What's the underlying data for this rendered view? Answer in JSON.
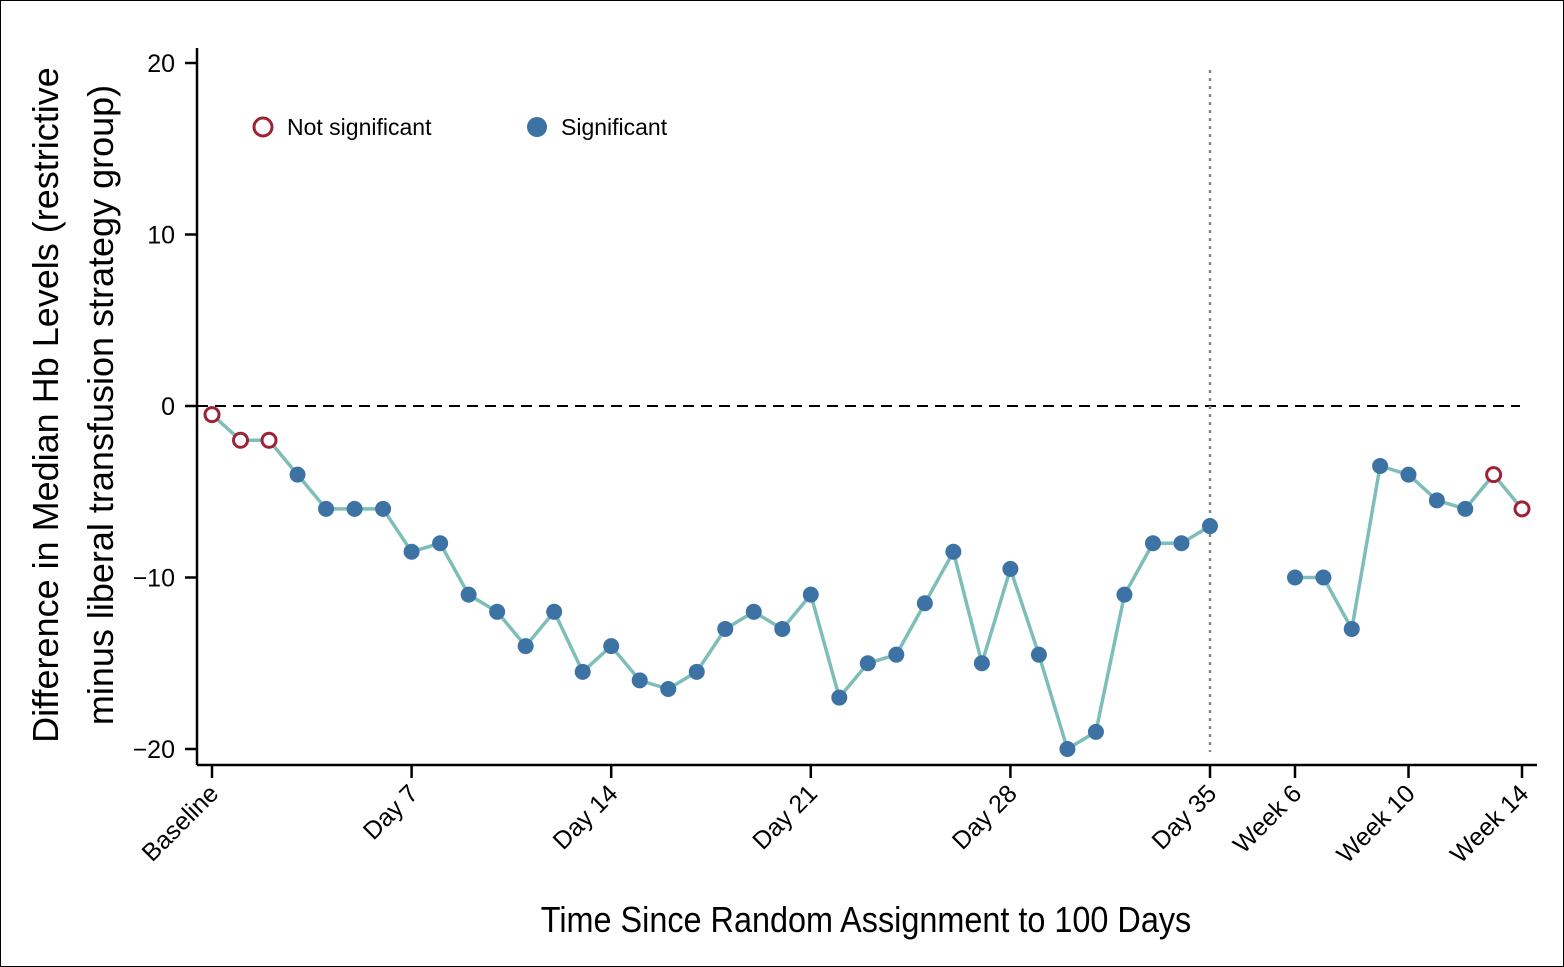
{
  "chart_data": {
    "type": "line",
    "xlabel": "Time Since Random Assignment to 100 Days",
    "ylabel_line1": "Difference in Median Hb Levels (restrictive",
    "ylabel_line2": "minus liberal transfusion strategy group)",
    "ylim": [
      -21,
      21
    ],
    "yticks": [
      20,
      10,
      0,
      -10,
      -20
    ],
    "x_ticks": [
      {
        "x": 0,
        "label": "Baseline"
      },
      {
        "x": 7,
        "label": "Day 7"
      },
      {
        "x": 14,
        "label": "Day 14"
      },
      {
        "x": 21,
        "label": "Day 21"
      },
      {
        "x": 28,
        "label": "Day 28"
      },
      {
        "x": 35,
        "label": "Day 35"
      },
      {
        "x": 38,
        "label": "Week 6"
      },
      {
        "x": 42,
        "label": "Week 10"
      },
      {
        "x": 46,
        "label": "Week 14"
      }
    ],
    "reference_line_y": 0,
    "divider_x": 35,
    "legend": {
      "not_significant": "Not significant",
      "significant": "Significant",
      "placement": "top-left"
    },
    "colors": {
      "line": "#7dbfb8",
      "significant": "#3d72a5",
      "not_significant": "#9b2335"
    },
    "segments": [
      [
        {
          "x": 0,
          "y": -0.5,
          "sig": false
        },
        {
          "x": 1,
          "y": -2,
          "sig": false
        },
        {
          "x": 2,
          "y": -2,
          "sig": false
        },
        {
          "x": 3,
          "y": -4,
          "sig": true
        },
        {
          "x": 4,
          "y": -6,
          "sig": true
        },
        {
          "x": 5,
          "y": -6,
          "sig": true
        },
        {
          "x": 6,
          "y": -6,
          "sig": true
        },
        {
          "x": 7,
          "y": -8.5,
          "sig": true
        },
        {
          "x": 8,
          "y": -8,
          "sig": true
        },
        {
          "x": 9,
          "y": -11,
          "sig": true
        },
        {
          "x": 10,
          "y": -12,
          "sig": true
        },
        {
          "x": 11,
          "y": -14,
          "sig": true
        },
        {
          "x": 12,
          "y": -12,
          "sig": true
        },
        {
          "x": 13,
          "y": -15.5,
          "sig": true
        },
        {
          "x": 14,
          "y": -14,
          "sig": true
        },
        {
          "x": 15,
          "y": -16,
          "sig": true
        },
        {
          "x": 16,
          "y": -16.5,
          "sig": true
        },
        {
          "x": 17,
          "y": -15.5,
          "sig": true
        },
        {
          "x": 18,
          "y": -13,
          "sig": true
        },
        {
          "x": 19,
          "y": -12,
          "sig": true
        },
        {
          "x": 20,
          "y": -13,
          "sig": true
        },
        {
          "x": 21,
          "y": -11,
          "sig": true
        },
        {
          "x": 22,
          "y": -17,
          "sig": true
        },
        {
          "x": 23,
          "y": -15,
          "sig": true
        },
        {
          "x": 24,
          "y": -14.5,
          "sig": true
        },
        {
          "x": 25,
          "y": -11.5,
          "sig": true
        },
        {
          "x": 26,
          "y": -8.5,
          "sig": true
        },
        {
          "x": 27,
          "y": -15,
          "sig": true
        },
        {
          "x": 28,
          "y": -9.5,
          "sig": true
        },
        {
          "x": 29,
          "y": -14.5,
          "sig": true
        },
        {
          "x": 30,
          "y": -20,
          "sig": true
        },
        {
          "x": 31,
          "y": -19,
          "sig": true
        },
        {
          "x": 32,
          "y": -11,
          "sig": true
        },
        {
          "x": 33,
          "y": -8,
          "sig": true
        },
        {
          "x": 34,
          "y": -8,
          "sig": true
        },
        {
          "x": 35,
          "y": -7,
          "sig": true
        }
      ],
      [
        {
          "x": 38,
          "y": -10,
          "sig": true
        },
        {
          "x": 39,
          "y": -10,
          "sig": true
        },
        {
          "x": 40,
          "y": -13,
          "sig": true
        },
        {
          "x": 41,
          "y": -3.5,
          "sig": true
        },
        {
          "x": 42,
          "y": -4,
          "sig": true
        },
        {
          "x": 43,
          "y": -5.5,
          "sig": true
        },
        {
          "x": 44,
          "y": -6,
          "sig": true
        },
        {
          "x": 45,
          "y": -4,
          "sig": false
        },
        {
          "x": 46,
          "y": -6,
          "sig": false
        }
      ]
    ]
  }
}
